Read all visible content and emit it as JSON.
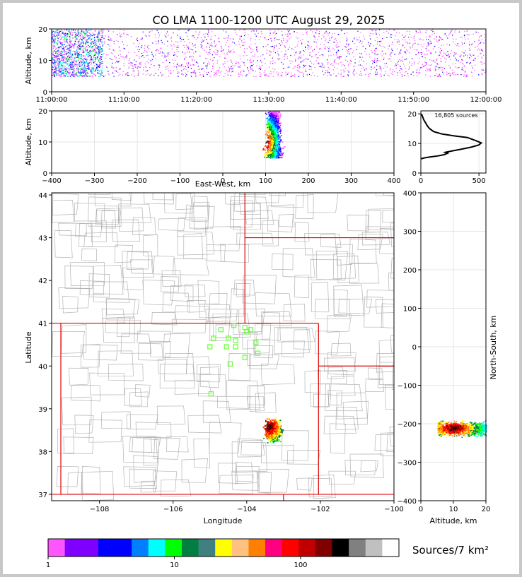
{
  "title": "CO LMA 1100-1200 UTC August 29, 2025",
  "colors": {
    "state_border": "#e00000",
    "county_border": "#b4b4b4",
    "station_marker": "#66ff33",
    "grid": "#e6e6e6"
  },
  "time_height": {
    "ylabel": "Altitude, km",
    "yticks": [
      0,
      10,
      20
    ],
    "xticks": [
      "11:00:00",
      "11:10:00",
      "11:20:00",
      "11:30:00",
      "11:40:00",
      "11:50:00",
      "12:00:00"
    ]
  },
  "ew_height": {
    "xlabel": "East-West, km",
    "ylabel": "Altitude, km",
    "xticks": [
      -400,
      -300,
      -200,
      -100,
      0,
      100,
      200,
      300,
      400
    ],
    "yticks": [
      0,
      10,
      20
    ]
  },
  "histogram": {
    "annotation": "16,805 sources",
    "xticks": [
      0,
      500
    ],
    "yticks": [
      0,
      10,
      20
    ]
  },
  "plan_view": {
    "xlabel": "Longitude",
    "ylabel": "Latitude",
    "xticks": [
      "−108",
      "−106",
      "−104",
      "−102",
      "−100"
    ],
    "yticks": [
      "37",
      "38",
      "39",
      "40",
      "41",
      "42",
      "43",
      "44"
    ]
  },
  "ns_height": {
    "xlabel": "Altitude, km",
    "ylabel": "North-South, km",
    "xticks": [
      0,
      10,
      20
    ],
    "yticks": [
      400,
      300,
      200,
      100,
      0,
      -100,
      -200,
      -300,
      -400
    ]
  },
  "colorbar": {
    "label": "Sources/7 km²",
    "ticks": [
      "1",
      "10",
      "100"
    ],
    "colors": [
      "#ff55ff",
      "#8000ff",
      "#8000ff",
      "#0000ff",
      "#0000ff",
      "#0080ff",
      "#00ffff",
      "#00ff00",
      "#008040",
      "#408080",
      "#ffff00",
      "#ffc080",
      "#ff8000",
      "#ff0080",
      "#ff0000",
      "#c00000",
      "#800000",
      "#000000",
      "#808080",
      "#c0c0c0",
      "#ffffff"
    ]
  },
  "chart_data": [
    {
      "type": "scatter",
      "panel": "time-height",
      "xlabel": "",
      "ylabel": "Altitude, km",
      "xlim": [
        "11:00:00",
        "12:00:00"
      ],
      "ylim": [
        0,
        20
      ],
      "source_altitude_range_km": [
        5,
        20
      ],
      "densest_period": [
        "11:00:00",
        "11:07:00"
      ]
    },
    {
      "type": "scatter",
      "panel": "east-west vs altitude",
      "xlabel": "East-West, km",
      "ylabel": "Altitude, km",
      "xlim": [
        -400,
        400
      ],
      "ylim": [
        0,
        20
      ],
      "cluster_x_km": [
        85,
        150
      ],
      "cluster_alt_km": [
        5,
        20
      ],
      "peak": {
        "x": 100,
        "alt": 10
      }
    },
    {
      "type": "line",
      "panel": "altitude histogram",
      "annotation": "16,805 sources",
      "xlim": [
        0,
        560
      ],
      "ylim": [
        0,
        21
      ],
      "x": [
        0,
        40,
        90,
        150,
        200,
        230,
        210,
        260,
        340,
        430,
        500,
        520,
        470,
        400,
        280,
        180,
        110,
        75,
        55,
        40,
        25,
        15,
        5
      ],
      "y": [
        4.8,
        5.2,
        5.5,
        5.8,
        6.2,
        6.7,
        7.0,
        7.4,
        8.0,
        8.7,
        9.5,
        10.2,
        11.0,
        12.0,
        12.6,
        13.2,
        14.0,
        15.0,
        16.0,
        17.0,
        18.0,
        19.0,
        20.0
      ]
    },
    {
      "type": "scatter",
      "panel": "plan view",
      "xlabel": "Longitude",
      "ylabel": "Latitude",
      "xlim": [
        -109.3,
        -100
      ],
      "ylim": [
        36.85,
        44.05
      ],
      "cluster": {
        "lon": [
          -103.6,
          -103.0
        ],
        "lat": [
          38.1,
          38.8
        ],
        "peak_lon": -103.4,
        "peak_lat": 38.6
      },
      "stations": [
        {
          "lon": -104.9,
          "lat": 40.65
        },
        {
          "lon": -104.7,
          "lat": 40.85
        },
        {
          "lon": -104.35,
          "lat": 40.95
        },
        {
          "lon": -104.05,
          "lat": 40.9
        },
        {
          "lon": -103.9,
          "lat": 40.85
        },
        {
          "lon": -104.0,
          "lat": 40.8
        },
        {
          "lon": -104.5,
          "lat": 40.65
        },
        {
          "lon": -104.3,
          "lat": 40.6
        },
        {
          "lon": -103.75,
          "lat": 40.55
        },
        {
          "lon": -105.0,
          "lat": 40.45
        },
        {
          "lon": -104.55,
          "lat": 40.45
        },
        {
          "lon": -104.3,
          "lat": 40.45
        },
        {
          "lon": -103.7,
          "lat": 40.3
        },
        {
          "lon": -104.05,
          "lat": 40.2
        },
        {
          "lon": -104.45,
          "lat": 40.05
        },
        {
          "lon": -104.97,
          "lat": 39.35
        }
      ]
    },
    {
      "type": "scatter",
      "panel": "altitude vs north-south",
      "xlabel": "Altitude, km",
      "ylabel": "North-South, km",
      "xlim": [
        0,
        20
      ],
      "ylim": [
        -400,
        400
      ],
      "cluster_alt_km": [
        5,
        20
      ],
      "cluster_ns_km": [
        -250,
        -180
      ],
      "peak": {
        "alt": 10,
        "ns": -210
      }
    }
  ]
}
